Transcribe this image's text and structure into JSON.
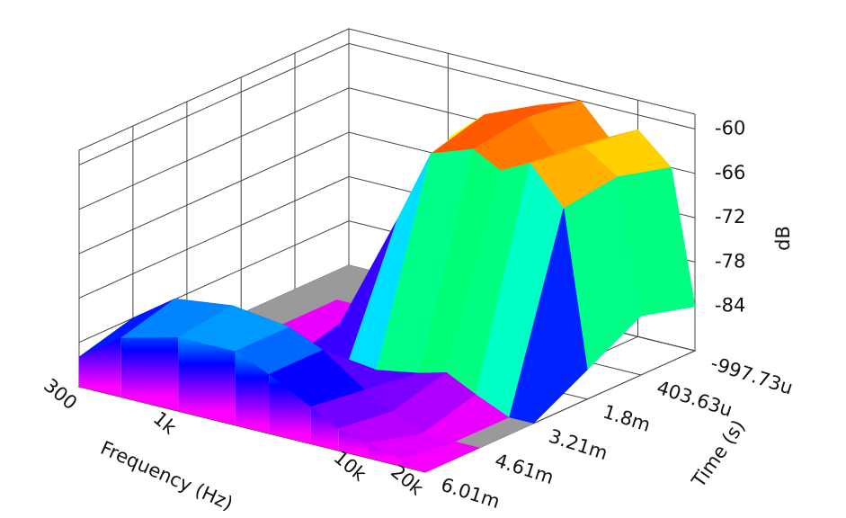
{
  "chart_data": {
    "type": "surface3d",
    "x_label": "Frequency (Hz)",
    "y_label": "Time (s)",
    "z_label": "dB",
    "xlim": [
      300,
      20000
    ],
    "xscale": "log",
    "xticks": [
      300,
      {
        "value": 1000,
        "label": "1k"
      },
      {
        "value": 10000,
        "label": "10k"
      },
      {
        "value": 20000,
        "label": "20k"
      }
    ],
    "ylim": [
      -0.00099773,
      0.00601
    ],
    "yticks": [
      {
        "value": -0.00099773,
        "label": "-997.73u"
      },
      {
        "value": 0.00040363,
        "label": "403.63u"
      },
      {
        "value": 0.0018,
        "label": "1.8m"
      },
      {
        "value": 0.00321,
        "label": "3.21m"
      },
      {
        "value": 0.00461,
        "label": "4.61m"
      },
      {
        "value": 0.00601,
        "label": "6.01m"
      }
    ],
    "zlim": [
      -90,
      -58
    ],
    "zticks": [
      -84,
      -78,
      -72,
      -66,
      -60
    ],
    "grid": true,
    "colormap": [
      "#ff00ff",
      "#0000ff",
      "#00ffff",
      "#00ff00",
      "#ffff00",
      "#ff0000"
    ],
    "floor_color": "#9a9a9a",
    "x": [
      300,
      500,
      1000,
      2000,
      3000,
      5000,
      7000,
      10000,
      15000,
      20000
    ],
    "series": [
      {
        "time": -0.00099773,
        "values": [
          -90,
          -90,
          -90,
          -66,
          -62,
          -60,
          -64,
          -62,
          -66,
          -84
        ]
      },
      {
        "time": 0.00040363,
        "values": [
          -90,
          -90,
          -90,
          -64,
          -60,
          -59,
          -63,
          -61,
          -64,
          -82
        ]
      },
      {
        "time": 0.0018,
        "values": [
          -90,
          -90,
          -88,
          -72,
          -62,
          -60,
          -62,
          -60,
          -65,
          -86
        ]
      },
      {
        "time": 0.00321,
        "values": [
          -90,
          -90,
          -90,
          -90,
          -88,
          -87,
          -86,
          -88,
          -90,
          -90
        ]
      },
      {
        "time": 0.00461,
        "values": [
          -84,
          -80,
          -79,
          -80,
          -82,
          -86,
          -88,
          -90,
          -90,
          -90
        ]
      },
      {
        "time": 0.00601,
        "values": [
          -86,
          -82,
          -80,
          -80,
          -82,
          -85,
          -87,
          -88,
          -89,
          -90
        ]
      }
    ]
  }
}
